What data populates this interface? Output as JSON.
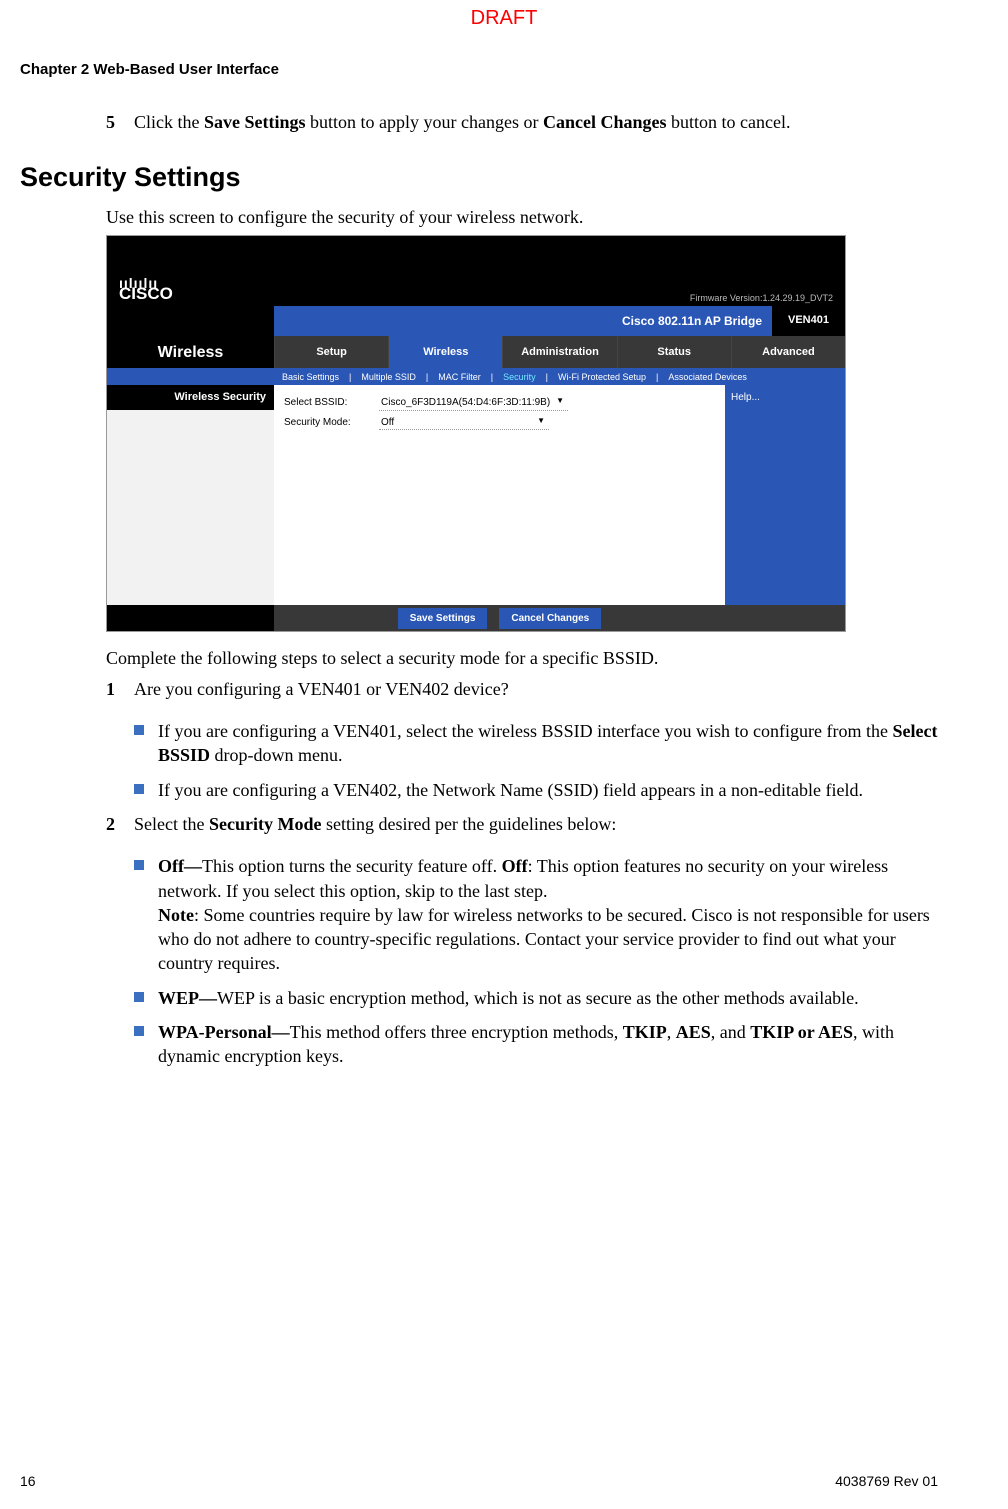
{
  "draft_label": "DRAFT",
  "chapter_header": "Chapter 2    Web-Based User Interface",
  "step5": {
    "num": "5",
    "pre": "Click the ",
    "b1": "Save Settings",
    "mid": " button to apply your changes or ",
    "b2": "Cancel Changes",
    "post": " button to cancel."
  },
  "h2": "Security Settings",
  "intro": "Use this screen to configure the security of your wireless network.",
  "screenshot": {
    "logo_bars": "ıılıılıı",
    "logo_text": "CISCO",
    "firmware": "Firmware Version:1.24.29.19_DVT2",
    "title": "Cisco 802.11n AP Bridge",
    "model": "VEN401",
    "nav_label": "Wireless",
    "tabs": [
      "Setup",
      "Wireless",
      "Administration",
      "Status",
      "Advanced"
    ],
    "active_tab_index": 1,
    "subnav": [
      "Basic Settings",
      "Multiple SSID",
      "MAC Filter",
      "Security",
      "Wi-Fi Protected Setup",
      "Associated Devices"
    ],
    "subnav_active_index": 3,
    "left_header": "Wireless Security",
    "form": {
      "bssid_label": "Select BSSID:",
      "bssid_value": "Cisco_6F3D119A(54:D4:6F:3D:11:9B)",
      "mode_label": "Security Mode:",
      "mode_value": "Off"
    },
    "help": "Help...",
    "save_btn": "Save Settings",
    "cancel_btn": "Cancel Changes"
  },
  "after_shot": "Complete the following steps to select a security mode for a specific BSSID.",
  "step1": {
    "num": "1",
    "text": "Are you configuring a VEN401 or VEN402 device?"
  },
  "bullet1a": {
    "pre": "If you are configuring a VEN401, select the wireless BSSID interface you wish to configure from the ",
    "b": "Select BSSID",
    "post": " drop-down menu."
  },
  "bullet1b": "If you are configuring a VEN402, the Network Name (SSID) field appears in a non-editable field.",
  "step2": {
    "num": "2",
    "pre": "Select the ",
    "b": "Security Mode",
    "post": " setting desired per the guidelines below:"
  },
  "bullet_off": {
    "b1": "Off—",
    "t1": "This option turns the security feature off. ",
    "b2": "Off",
    "t2": ": This option features no security on your wireless network. If you select this option, skip to the last step.",
    "b3": "Note",
    "t3": ": Some countries require by law for wireless networks to be secured. Cisco is not responsible for users who do not adhere to country-specific regulations. Contact your service provider to find out what your country requires."
  },
  "bullet_wep": {
    "b": "WEP—",
    "t": "WEP is a basic encryption method, which is not as secure as the other methods available."
  },
  "bullet_wpa": {
    "b1": "WPA-Personal—",
    "t1": "This method offers three encryption methods, ",
    "b2": "TKIP",
    "t2": ", ",
    "b3": "AES",
    "t3": ", and ",
    "b4": "TKIP or AES",
    "t4": ", with dynamic encryption keys."
  },
  "footer": {
    "page": "16",
    "doc": "4038769 Rev 01"
  },
  "colors": {
    "draft": "#ff0000",
    "blue": "#2a56b5",
    "bullet": "#3b6fbf"
  }
}
